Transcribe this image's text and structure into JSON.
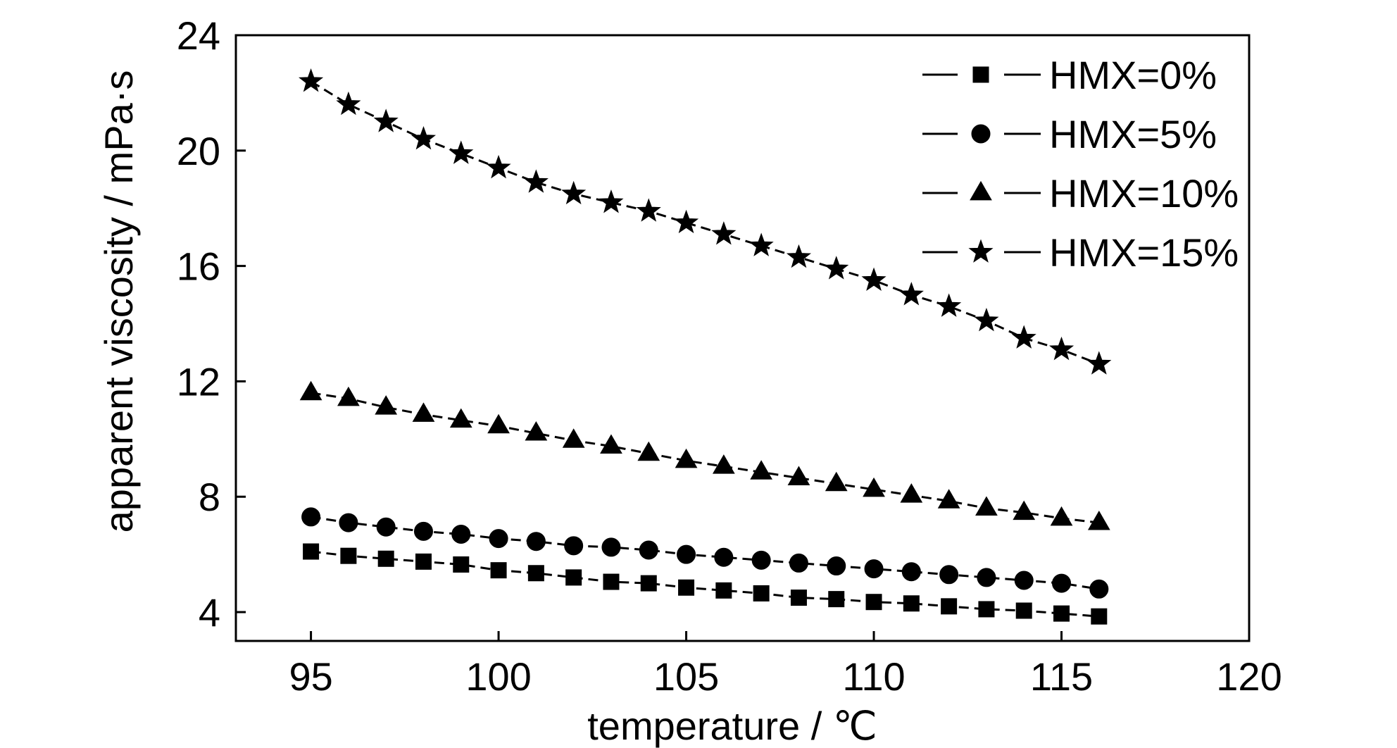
{
  "chart_data": {
    "type": "line",
    "title": "",
    "xlabel": "temperature / ℃",
    "ylabel": "apparent viscosity / mPa·s",
    "xlim": [
      93,
      120
    ],
    "ylim": [
      3,
      24
    ],
    "xticks": [
      95,
      100,
      105,
      110,
      115,
      120
    ],
    "yticks": [
      4,
      8,
      12,
      16,
      20,
      24
    ],
    "grid": false,
    "legend_position": "top-right",
    "x": [
      95,
      96,
      97,
      98,
      99,
      100,
      101,
      102,
      103,
      104,
      105,
      106,
      107,
      108,
      109,
      110,
      111,
      112,
      113,
      114,
      115,
      116
    ],
    "series": [
      {
        "name": "HMX=0%",
        "marker": "square",
        "values": [
          6.1,
          5.95,
          5.85,
          5.75,
          5.65,
          5.45,
          5.35,
          5.2,
          5.05,
          5.0,
          4.85,
          4.75,
          4.65,
          4.5,
          4.45,
          4.35,
          4.3,
          4.2,
          4.1,
          4.05,
          3.95,
          3.85
        ]
      },
      {
        "name": "HMX=5%",
        "marker": "circle",
        "values": [
          7.3,
          7.1,
          6.95,
          6.8,
          6.7,
          6.55,
          6.45,
          6.3,
          6.25,
          6.15,
          6.0,
          5.9,
          5.8,
          5.7,
          5.6,
          5.5,
          5.4,
          5.3,
          5.2,
          5.1,
          5.0,
          4.8
        ]
      },
      {
        "name": "HMX=10%",
        "marker": "triangle",
        "values": [
          11.6,
          11.4,
          11.1,
          10.85,
          10.65,
          10.45,
          10.2,
          9.95,
          9.75,
          9.5,
          9.25,
          9.05,
          8.85,
          8.65,
          8.45,
          8.25,
          8.05,
          7.85,
          7.6,
          7.45,
          7.25,
          7.1
        ]
      },
      {
        "name": "HMX=15%",
        "marker": "star",
        "values": [
          22.4,
          21.6,
          21.0,
          20.4,
          19.9,
          19.4,
          18.9,
          18.5,
          18.2,
          17.9,
          17.5,
          17.1,
          16.7,
          16.3,
          15.9,
          15.5,
          15.0,
          14.6,
          14.1,
          13.5,
          13.1,
          12.6
        ]
      }
    ]
  }
}
